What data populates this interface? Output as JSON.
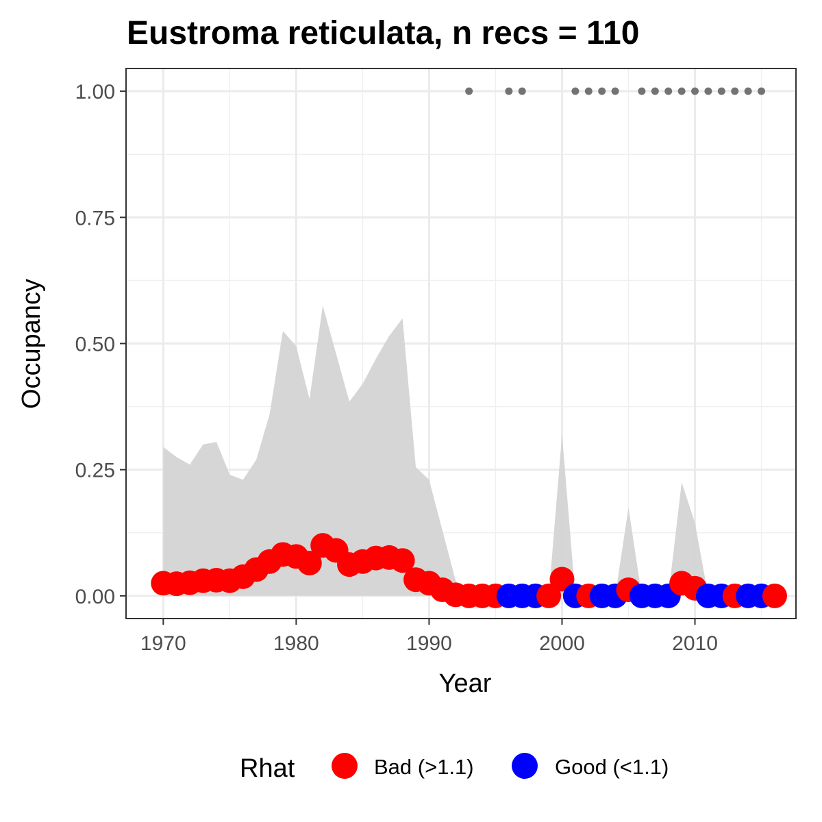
{
  "chart_data": {
    "type": "scatter",
    "title": "Eustroma reticulata, n recs = 110",
    "xlabel": "Year",
    "ylabel": "Occupancy",
    "xlim": [
      1967.2,
      2017.6
    ],
    "ylim": [
      -0.045,
      1.045
    ],
    "x_ticks": [
      1970,
      1980,
      1990,
      2000,
      2010
    ],
    "x_tick_labels": [
      "1970",
      "1980",
      "1990",
      "2000",
      "2010"
    ],
    "y_ticks": [
      0,
      0.25,
      0.5,
      0.75,
      1.0
    ],
    "y_tick_labels": [
      "0.00",
      "0.25",
      "0.50",
      "0.75",
      "1.00"
    ],
    "grid": true,
    "legend": {
      "title": "Rhat",
      "position": "bottom",
      "entries": [
        {
          "key": "bad",
          "label": "Bad (>1.1)",
          "color": "#ff0000"
        },
        {
          "key": "good",
          "label": "Good (<1.1)",
          "color": "#0000ff"
        }
      ]
    },
    "ribbon": {
      "color": "#d4d4d4",
      "x": [
        1970,
        1971,
        1972,
        1973,
        1974,
        1975,
        1976,
        1977,
        1978,
        1979,
        1980,
        1981,
        1982,
        1983,
        1984,
        1985,
        1986,
        1987,
        1988,
        1989,
        1990,
        1991,
        1992,
        1993,
        1994,
        1995,
        1996,
        1997,
        1998,
        1999,
        2000,
        2001,
        2002,
        2003,
        2004,
        2005,
        2006,
        2007,
        2008,
        2009,
        2010,
        2011,
        2012,
        2013,
        2014,
        2015,
        2016
      ],
      "upper": [
        0.295,
        0.275,
        0.26,
        0.3,
        0.305,
        0.24,
        0.23,
        0.27,
        0.36,
        0.525,
        0.495,
        0.39,
        0.575,
        0.48,
        0.385,
        0.42,
        0.47,
        0.515,
        0.55,
        0.255,
        0.23,
        0.13,
        0.03,
        0,
        0,
        0,
        0,
        0,
        0,
        0,
        0.32,
        0,
        0,
        0,
        0,
        0.175,
        0,
        0,
        0,
        0.225,
        0.145,
        0,
        0,
        0,
        0,
        0,
        0
      ],
      "lower": [
        0,
        0,
        0,
        0,
        0,
        0,
        0,
        0,
        0,
        0,
        0,
        0,
        0,
        0,
        0,
        0,
        0,
        0,
        0,
        0,
        0,
        0,
        0,
        0,
        0,
        0,
        0,
        0,
        0,
        0,
        0,
        0,
        0,
        0,
        0,
        0,
        0,
        0,
        0,
        0,
        0,
        0,
        0,
        0,
        0,
        0,
        0
      ]
    },
    "series": [
      {
        "name": "Bad (>1.1)",
        "color": "#ff0000",
        "x": [
          1970,
          1971,
          1972,
          1973,
          1974,
          1975,
          1976,
          1977,
          1978,
          1979,
          1980,
          1981,
          1982,
          1983,
          1984,
          1985,
          1986,
          1987,
          1988,
          1989,
          1990,
          1991,
          1992,
          1993,
          1994,
          1995,
          1999,
          2000,
          2002,
          2005,
          2009,
          2010,
          2013,
          2016
        ],
        "y": [
          0.025,
          0.024,
          0.026,
          0.03,
          0.031,
          0.03,
          0.038,
          0.052,
          0.068,
          0.082,
          0.078,
          0.065,
          0.1,
          0.09,
          0.062,
          0.068,
          0.075,
          0.076,
          0.07,
          0.032,
          0.025,
          0.012,
          0.002,
          0,
          0,
          0,
          0,
          0.033,
          0,
          0.012,
          0.025,
          0.015,
          0,
          0
        ]
      },
      {
        "name": "Good (<1.1)",
        "color": "#0000ff",
        "x": [
          1996,
          1997,
          1998,
          2001,
          2003,
          2004,
          2006,
          2007,
          2008,
          2011,
          2012,
          2014,
          2015
        ],
        "y": [
          0,
          0,
          0,
          0,
          0,
          0,
          0,
          0,
          0,
          0,
          0,
          0,
          0
        ]
      }
    ],
    "detections": {
      "color": "#737373",
      "y": 1.0,
      "x": [
        1993,
        1996,
        1997,
        2001,
        2002,
        2003,
        2004,
        2006,
        2007,
        2008,
        2009,
        2010,
        2011,
        2012,
        2013,
        2014,
        2015
      ]
    }
  }
}
